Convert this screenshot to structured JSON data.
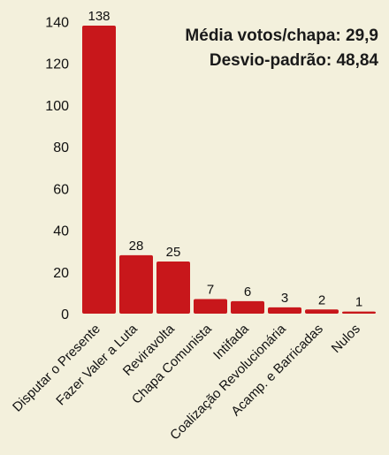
{
  "chart_data": {
    "type": "bar",
    "categories": [
      "Disputar o Presente",
      "Fazer Valer a Luta",
      "Reviravolta",
      "Chapa Comunista",
      "Intifada",
      "Coalização Revolucionária",
      "Acamp. e Barricadas",
      "Nulos"
    ],
    "values": [
      138,
      28,
      25,
      7,
      6,
      3,
      2,
      1
    ],
    "data_labels": [
      "138",
      "28",
      "25",
      "7",
      "6",
      "3",
      "2",
      "1"
    ],
    "title": "",
    "xlabel": "",
    "ylabel": "",
    "ylim": [
      0,
      150
    ],
    "yticks": [
      0,
      20,
      40,
      60,
      80,
      100,
      120,
      140
    ],
    "ytick_labels": [
      "0",
      "20",
      "40",
      "60",
      "80",
      "100",
      "120",
      "140"
    ],
    "grid": false,
    "bar_color": "#c8171b",
    "background_color": "#f3f0dc",
    "annotations": [
      "Média votos/chapa: 29,9",
      "Desvio-padrão: 48,84"
    ]
  }
}
